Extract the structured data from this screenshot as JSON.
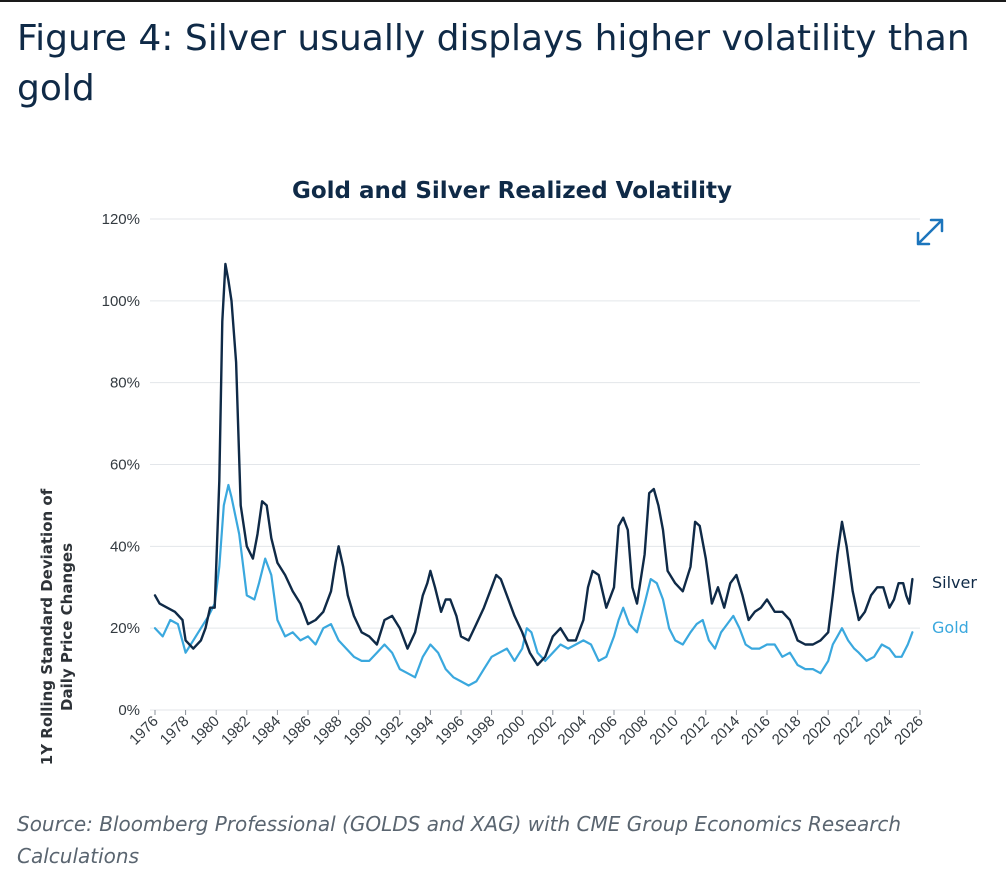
{
  "figure_title": "Figure 4: Silver usually displays higher volatility than gold",
  "source": "Source: Bloomberg Professional (GOLDS and XAG) with CME Group Economics Research Calculations",
  "expand_icon": "expand-arrows-icon",
  "colors": {
    "silver": "#0f2a47",
    "gold": "#3aa8de",
    "grid": "#e3e6ea",
    "accent": "#1c75bc"
  },
  "chart_data": {
    "type": "line",
    "title": "Gold and Silver Realized Volatility",
    "xlabel": "",
    "ylabel_lines": [
      "1Y Rolling Standard Deviation of",
      "Daily Price Changes"
    ],
    "xlim": [
      1976,
      2026
    ],
    "ylim": [
      0,
      120
    ],
    "y_ticks": [
      {
        "value": 0,
        "label": "0%"
      },
      {
        "value": 20,
        "label": "20%"
      },
      {
        "value": 40,
        "label": "40%"
      },
      {
        "value": 60,
        "label": "60%"
      },
      {
        "value": 80,
        "label": "80%"
      },
      {
        "value": 100,
        "label": "100%"
      },
      {
        "value": 120,
        "label": "120%"
      }
    ],
    "x_ticks": [
      1976,
      1978,
      1980,
      1982,
      1984,
      1986,
      1988,
      1990,
      1992,
      1994,
      1996,
      1998,
      2000,
      2002,
      2004,
      2006,
      2008,
      2010,
      2012,
      2014,
      2016,
      2018,
      2020,
      2022,
      2024,
      2026
    ],
    "grid": true,
    "series": [
      {
        "name": "Silver",
        "x": [
          1976.0,
          1976.3,
          1976.8,
          1977.3,
          1977.8,
          1978.0,
          1978.5,
          1979.0,
          1979.3,
          1979.6,
          1979.9,
          1980.0,
          1980.2,
          1980.4,
          1980.6,
          1980.8,
          1981.0,
          1981.3,
          1981.6,
          1982.0,
          1982.4,
          1982.7,
          1983.0,
          1983.3,
          1983.6,
          1984.0,
          1984.5,
          1985.0,
          1985.5,
          1986.0,
          1986.5,
          1987.0,
          1987.5,
          1987.8,
          1988.0,
          1988.3,
          1988.6,
          1989.0,
          1989.5,
          1990.0,
          1990.5,
          1991.0,
          1991.5,
          1992.0,
          1992.5,
          1993.0,
          1993.5,
          1993.8,
          1994.0,
          1994.3,
          1994.7,
          1995.0,
          1995.3,
          1995.7,
          1996.0,
          1996.5,
          1997.0,
          1997.5,
          1998.0,
          1998.3,
          1998.6,
          1999.0,
          1999.5,
          2000.0,
          2000.5,
          2001.0,
          2001.5,
          2002.0,
          2002.5,
          2003.0,
          2003.5,
          2004.0,
          2004.3,
          2004.6,
          2005.0,
          2005.5,
          2006.0,
          2006.3,
          2006.6,
          2006.9,
          2007.2,
          2007.5,
          2008.0,
          2008.3,
          2008.6,
          2008.9,
          2009.2,
          2009.5,
          2010.0,
          2010.5,
          2011.0,
          2011.3,
          2011.6,
          2012.0,
          2012.4,
          2012.8,
          2013.2,
          2013.6,
          2014.0,
          2014.4,
          2014.8,
          2015.2,
          2015.6,
          2016.0,
          2016.5,
          2017.0,
          2017.5,
          2018.0,
          2018.5,
          2019.0,
          2019.5,
          2020.0,
          2020.3,
          2020.6,
          2020.9,
          2021.2,
          2021.6,
          2022.0,
          2022.4,
          2022.8,
          2023.2,
          2023.6,
          2024.0,
          2024.3,
          2024.6,
          2024.9,
          2025.1,
          2025.3,
          2025.5
        ],
        "y": [
          28,
          26,
          25,
          24,
          22,
          17,
          15,
          17,
          20,
          25,
          25,
          35,
          56,
          95,
          109,
          105,
          100,
          85,
          50,
          40,
          37,
          43,
          51,
          50,
          42,
          36,
          33,
          29,
          26,
          21,
          22,
          24,
          29,
          36,
          40,
          35,
          28,
          23,
          19,
          18,
          16,
          22,
          23,
          20,
          15,
          19,
          28,
          31,
          34,
          30,
          24,
          27,
          27,
          23,
          18,
          17,
          21,
          25,
          30,
          33,
          32,
          28,
          23,
          19,
          14,
          11,
          13,
          18,
          20,
          17,
          17,
          22,
          30,
          34,
          33,
          25,
          30,
          45,
          47,
          44,
          30,
          26,
          38,
          53,
          54,
          50,
          44,
          34,
          31,
          29,
          35,
          46,
          45,
          37,
          26,
          30,
          25,
          31,
          33,
          28,
          22,
          24,
          25,
          27,
          24,
          24,
          22,
          17,
          16,
          16,
          17,
          19,
          28,
          38,
          46,
          40,
          29,
          22,
          24,
          28,
          30,
          30,
          25,
          27,
          31,
          31,
          28,
          26,
          32
        ]
      },
      {
        "name": "Gold",
        "x": [
          1976.0,
          1976.5,
          1977.0,
          1977.5,
          1978.0,
          1978.5,
          1979.0,
          1979.5,
          1979.9,
          1980.2,
          1980.5,
          1980.8,
          1981.0,
          1981.5,
          1982.0,
          1982.5,
          1982.8,
          1983.2,
          1983.6,
          1984.0,
          1984.5,
          1985.0,
          1985.5,
          1986.0,
          1986.5,
          1987.0,
          1987.5,
          1988.0,
          1988.5,
          1989.0,
          1989.5,
          1990.0,
          1990.5,
          1991.0,
          1991.5,
          1992.0,
          1992.5,
          1993.0,
          1993.5,
          1994.0,
          1994.5,
          1995.0,
          1995.5,
          1996.0,
          1996.5,
          1997.0,
          1997.5,
          1998.0,
          1998.5,
          1999.0,
          1999.5,
          2000.0,
          2000.3,
          2000.6,
          2001.0,
          2001.5,
          2002.0,
          2002.5,
          2003.0,
          2003.5,
          2004.0,
          2004.5,
          2005.0,
          2005.5,
          2006.0,
          2006.3,
          2006.6,
          2007.0,
          2007.5,
          2008.0,
          2008.4,
          2008.8,
          2009.2,
          2009.6,
          2010.0,
          2010.5,
          2011.0,
          2011.4,
          2011.8,
          2012.2,
          2012.6,
          2013.0,
          2013.4,
          2013.8,
          2014.2,
          2014.6,
          2015.0,
          2015.5,
          2016.0,
          2016.5,
          2017.0,
          2017.5,
          2018.0,
          2018.5,
          2019.0,
          2019.5,
          2020.0,
          2020.3,
          2020.6,
          2020.9,
          2021.3,
          2021.7,
          2022.0,
          2022.5,
          2023.0,
          2023.5,
          2024.0,
          2024.4,
          2024.8,
          2025.2,
          2025.5
        ],
        "y": [
          20,
          18,
          22,
          21,
          14,
          17,
          20,
          23,
          26,
          35,
          50,
          55,
          52,
          43,
          28,
          27,
          31,
          37,
          33,
          22,
          18,
          19,
          17,
          18,
          16,
          20,
          21,
          17,
          15,
          13,
          12,
          12,
          14,
          16,
          14,
          10,
          9,
          8,
          13,
          16,
          14,
          10,
          8,
          7,
          6,
          7,
          10,
          13,
          14,
          15,
          12,
          15,
          20,
          19,
          14,
          12,
          14,
          16,
          15,
          16,
          17,
          16,
          12,
          13,
          18,
          22,
          25,
          21,
          19,
          26,
          32,
          31,
          27,
          20,
          17,
          16,
          19,
          21,
          22,
          17,
          15,
          19,
          21,
          23,
          20,
          16,
          15,
          15,
          16,
          16,
          13,
          14,
          11,
          10,
          10,
          9,
          12,
          16,
          18,
          20,
          17,
          15,
          14,
          12,
          13,
          16,
          15,
          13,
          13,
          16,
          19
        ]
      }
    ]
  }
}
